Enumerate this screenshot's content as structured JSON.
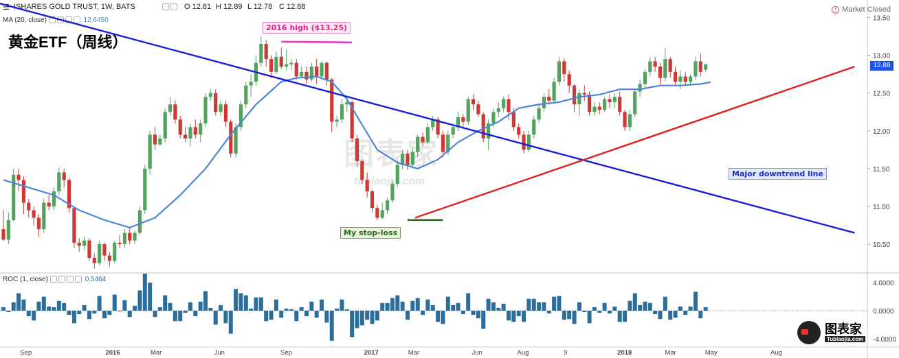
{
  "header": {
    "symbol": "ISHARES GOLD TRUST, 1W, BATS",
    "open": "O 12.81",
    "high": "H 12.89",
    "low": "L 12.78",
    "close": "C 12.88",
    "market_status": "Market Closed"
  },
  "ma": {
    "label": "MA (20, close)",
    "value": "12.6450",
    "color": "#4a86d9"
  },
  "roc": {
    "label": "ROC (1, close)",
    "value": "0.5464",
    "color": "#2d6d9a"
  },
  "title_cn": "黄金ETF（周线）",
  "last_price_tag": "12.88",
  "annotations": {
    "high": "2016 high ($13.25)",
    "stop": "My stop-loss",
    "trend": "Major downtrend line"
  },
  "watermark": {
    "cn": "图表家",
    "en": "tubiaojia.com"
  },
  "logo": {
    "cn": "图表家",
    "en": "Tubiaojia.com"
  },
  "colors": {
    "up": "#53a35f",
    "down": "#cd3a36",
    "downtrend": "#1c1fd0",
    "uptrend": "#e02020",
    "stop": "#2f6e22",
    "high": "#e23cc9"
  },
  "chart_data": {
    "type": "candlestick",
    "title": "",
    "price_axis": {
      "ylim": [
        10.12,
        13.55
      ],
      "ticks": [
        "13.50",
        "13.00",
        "12.50",
        "12.00",
        "11.50",
        "11.00",
        "10.50"
      ]
    },
    "time_axis": {
      "labels": [
        "Sep",
        "2016",
        "Mar",
        "Jun",
        "Sep",
        "2017",
        "Mar",
        "Jun",
        "Aug",
        "9",
        "2018",
        "Mar",
        "May",
        "Aug"
      ]
    },
    "candles": [
      [
        10.7,
        10.56,
        10.95,
        10.55
      ],
      [
        10.56,
        10.82,
        10.92,
        10.5
      ],
      [
        10.82,
        11.42,
        11.5,
        10.8
      ],
      [
        11.42,
        11.35,
        11.5,
        11.2
      ],
      [
        11.35,
        11.05,
        11.4,
        10.9
      ],
      [
        11.05,
        10.95,
        11.1,
        10.85
      ],
      [
        10.95,
        10.85,
        11,
        10.75
      ],
      [
        10.85,
        10.7,
        10.9,
        10.6
      ],
      [
        10.7,
        11.05,
        11.1,
        10.65
      ],
      [
        11.05,
        11.0,
        11.15,
        10.95
      ],
      [
        11.0,
        11.2,
        11.25,
        10.95
      ],
      [
        11.2,
        11.45,
        11.52,
        11.15
      ],
      [
        11.45,
        11.35,
        11.5,
        11.25
      ],
      [
        11.35,
        10.98,
        11.38,
        10.92
      ],
      [
        10.98,
        10.52,
        11.0,
        10.45
      ],
      [
        10.52,
        10.48,
        10.58,
        10.4
      ],
      [
        10.48,
        10.55,
        10.6,
        10.42
      ],
      [
        10.55,
        10.32,
        10.58,
        10.28
      ],
      [
        10.32,
        10.25,
        10.38,
        10.18
      ],
      [
        10.25,
        10.5,
        10.55,
        10.22
      ],
      [
        10.5,
        10.35,
        10.52,
        10.28
      ],
      [
        10.35,
        10.28,
        10.4,
        10.2
      ],
      [
        10.28,
        10.52,
        10.55,
        10.25
      ],
      [
        10.52,
        10.5,
        10.62,
        10.45
      ],
      [
        10.5,
        10.65,
        10.7,
        10.45
      ],
      [
        10.65,
        10.55,
        10.72,
        10.5
      ],
      [
        10.55,
        10.65,
        10.68,
        10.5
      ],
      [
        10.65,
        10.95,
        11.0,
        10.62
      ],
      [
        10.95,
        11.5,
        11.55,
        10.9
      ],
      [
        11.5,
        11.95,
        12.0,
        11.42
      ],
      [
        11.95,
        11.82,
        12.05,
        11.75
      ],
      [
        11.82,
        11.9,
        11.95,
        11.8
      ],
      [
        11.9,
        12.25,
        12.3,
        11.85
      ],
      [
        12.25,
        12.35,
        12.45,
        12.2
      ],
      [
        12.35,
        12.15,
        12.4,
        12.1
      ],
      [
        12.15,
        11.95,
        12.2,
        11.9
      ],
      [
        11.95,
        11.9,
        12.05,
        11.85
      ],
      [
        11.9,
        12.05,
        12.1,
        11.8
      ],
      [
        12.05,
        11.95,
        12.15,
        11.9
      ],
      [
        11.95,
        12.1,
        12.15,
        11.85
      ],
      [
        12.1,
        12.45,
        12.5,
        12.05
      ],
      [
        12.45,
        12.5,
        12.55,
        12.4
      ],
      [
        12.5,
        12.25,
        12.55,
        12.2
      ],
      [
        12.25,
        12.35,
        12.4,
        12.2
      ],
      [
        12.35,
        12.12,
        12.4,
        12.05
      ],
      [
        12.12,
        11.7,
        12.15,
        11.65
      ],
      [
        11.7,
        12.05,
        12.1,
        11.65
      ],
      [
        12.05,
        12.35,
        12.4,
        12.0
      ],
      [
        12.35,
        12.6,
        12.65,
        12.3
      ],
      [
        12.6,
        12.65,
        12.75,
        12.45
      ],
      [
        12.65,
        12.9,
        13.0,
        12.6
      ],
      [
        12.9,
        13.15,
        13.25,
        12.85
      ],
      [
        13.15,
        12.95,
        13.2,
        12.85
      ],
      [
        12.95,
        12.78,
        13.0,
        12.7
      ],
      [
        12.78,
        12.98,
        13.05,
        12.75
      ],
      [
        12.98,
        12.85,
        13.1,
        12.82
      ],
      [
        12.85,
        12.88,
        13.08,
        12.8
      ],
      [
        12.88,
        12.9,
        12.95,
        12.8
      ],
      [
        12.9,
        12.72,
        12.95,
        12.68
      ],
      [
        12.72,
        12.78,
        12.85,
        12.7
      ],
      [
        12.78,
        12.68,
        12.85,
        12.62
      ],
      [
        12.68,
        12.85,
        12.9,
        12.65
      ],
      [
        12.85,
        12.72,
        12.95,
        12.62
      ],
      [
        12.72,
        12.9,
        12.92,
        12.68
      ],
      [
        12.9,
        12.68,
        12.92,
        12.6
      ],
      [
        12.68,
        12.12,
        12.7,
        11.98
      ],
      [
        12.12,
        12.15,
        12.2,
        12.05
      ],
      [
        12.15,
        12.35,
        12.42,
        12.1
      ],
      [
        12.35,
        12.38,
        12.45,
        12.25
      ],
      [
        12.38,
        11.9,
        12.4,
        11.85
      ],
      [
        11.9,
        11.6,
        11.95,
        11.52
      ],
      [
        11.6,
        11.35,
        11.62,
        11.3
      ],
      [
        11.35,
        11.2,
        11.45,
        11.12
      ],
      [
        11.2,
        10.98,
        11.22,
        10.92
      ],
      [
        10.98,
        10.85,
        11.02,
        10.82
      ],
      [
        10.85,
        10.95,
        11.05,
        10.83
      ],
      [
        10.95,
        11.08,
        11.12,
        10.9
      ],
      [
        11.08,
        11.3,
        11.35,
        11.05
      ],
      [
        11.3,
        11.55,
        11.6,
        11.25
      ],
      [
        11.55,
        11.7,
        11.75,
        11.5
      ],
      [
        11.7,
        11.55,
        11.75,
        11.48
      ],
      [
        11.55,
        11.72,
        11.78,
        11.5
      ],
      [
        11.72,
        11.92,
        11.95,
        11.65
      ],
      [
        11.92,
        11.85,
        11.98,
        11.8
      ],
      [
        11.85,
        12.05,
        12.1,
        11.82
      ],
      [
        12.05,
        12.15,
        12.2,
        12.0
      ],
      [
        12.15,
        11.95,
        12.18,
        11.9
      ],
      [
        11.95,
        11.72,
        12.0,
        11.65
      ],
      [
        11.72,
        11.95,
        12.0,
        11.68
      ],
      [
        11.95,
        12.05,
        12.1,
        11.9
      ],
      [
        12.05,
        12.18,
        12.25,
        12.0
      ],
      [
        12.18,
        12.12,
        12.22,
        12.05
      ],
      [
        12.12,
        12.42,
        12.45,
        12.08
      ],
      [
        12.42,
        12.35,
        12.48,
        12.28
      ],
      [
        12.35,
        12.22,
        12.4,
        12.18
      ],
      [
        12.22,
        11.9,
        12.25,
        11.85
      ],
      [
        11.9,
        12.1,
        12.15,
        11.75
      ],
      [
        12.1,
        12.25,
        12.3,
        12.05
      ],
      [
        12.25,
        12.3,
        12.38,
        12.18
      ],
      [
        12.3,
        12.42,
        12.45,
        12.25
      ],
      [
        12.42,
        12.25,
        12.48,
        12.15
      ],
      [
        12.25,
        12.05,
        12.3,
        12.0
      ],
      [
        12.05,
        11.95,
        12.1,
        11.9
      ],
      [
        11.95,
        11.75,
        12.0,
        11.7
      ],
      [
        11.75,
        11.95,
        12.0,
        11.72
      ],
      [
        11.95,
        12.15,
        12.2,
        11.9
      ],
      [
        12.15,
        12.3,
        12.35,
        12.1
      ],
      [
        12.3,
        12.45,
        12.5,
        12.25
      ],
      [
        12.45,
        12.4,
        12.55,
        12.35
      ],
      [
        12.4,
        12.65,
        12.7,
        12.35
      ],
      [
        12.65,
        12.92,
        12.98,
        12.6
      ],
      [
        12.92,
        12.75,
        12.96,
        12.65
      ],
      [
        12.75,
        12.6,
        12.8,
        12.5
      ],
      [
        12.6,
        12.35,
        12.62,
        12.25
      ],
      [
        12.35,
        12.5,
        12.55,
        12.2
      ],
      [
        12.5,
        12.48,
        12.6,
        12.4
      ],
      [
        12.48,
        12.25,
        12.52,
        12.2
      ],
      [
        12.25,
        12.32,
        12.38,
        12.2
      ],
      [
        12.32,
        12.28,
        12.38,
        12.22
      ],
      [
        12.28,
        12.42,
        12.45,
        12.25
      ],
      [
        12.42,
        12.38,
        12.48,
        12.3
      ],
      [
        12.38,
        12.45,
        12.5,
        12.3
      ],
      [
        12.45,
        12.25,
        12.52,
        12.2
      ],
      [
        12.25,
        12.05,
        12.28,
        12.0
      ],
      [
        12.05,
        12.22,
        12.28,
        12.0
      ],
      [
        12.22,
        12.52,
        12.56,
        12.18
      ],
      [
        12.52,
        12.62,
        12.68,
        12.45
      ],
      [
        12.62,
        12.78,
        12.82,
        12.55
      ],
      [
        12.78,
        12.92,
        12.98,
        12.72
      ],
      [
        12.92,
        12.85,
        12.98,
        12.78
      ],
      [
        12.85,
        12.7,
        12.9,
        12.6
      ],
      [
        12.7,
        12.95,
        13.1,
        12.65
      ],
      [
        12.95,
        12.78,
        12.98,
        12.7
      ],
      [
        12.78,
        12.65,
        12.85,
        12.6
      ],
      [
        12.65,
        12.72,
        12.8,
        12.55
      ],
      [
        12.72,
        12.65,
        12.78,
        12.6
      ],
      [
        12.65,
        12.72,
        12.75,
        12.6
      ],
      [
        12.72,
        12.92,
        12.98,
        12.68
      ],
      [
        12.92,
        12.78,
        13.02,
        12.72
      ],
      [
        12.81,
        12.88,
        12.89,
        12.78
      ]
    ],
    "ma20": [
      [
        0,
        11.35
      ],
      [
        5,
        11.25
      ],
      [
        10,
        11.15
      ],
      [
        15,
        10.95
      ],
      [
        20,
        10.82
      ],
      [
        25,
        10.72
      ],
      [
        30,
        10.85
      ],
      [
        35,
        11.15
      ],
      [
        40,
        11.5
      ],
      [
        45,
        11.95
      ],
      [
        50,
        12.35
      ],
      [
        55,
        12.65
      ],
      [
        58,
        12.7
      ],
      [
        62,
        12.72
      ],
      [
        65,
        12.65
      ],
      [
        68,
        12.42
      ],
      [
        71,
        12.08
      ],
      [
        74,
        11.75
      ],
      [
        78,
        11.58
      ],
      [
        82,
        11.5
      ],
      [
        86,
        11.62
      ],
      [
        90,
        11.85
      ],
      [
        94,
        12.0
      ],
      [
        98,
        12.12
      ],
      [
        102,
        12.3
      ],
      [
        106,
        12.35
      ],
      [
        110,
        12.38
      ],
      [
        114,
        12.45
      ],
      [
        118,
        12.48
      ],
      [
        122,
        12.55
      ],
      [
        126,
        12.55
      ],
      [
        130,
        12.6
      ],
      [
        134,
        12.6
      ],
      [
        138,
        12.62
      ],
      [
        140,
        12.645
      ]
    ],
    "downtrend_line": {
      "from": [
        -1.5,
        13.7
      ],
      "to": [
        168.5,
        10.65
      ]
    },
    "uptrend_line": {
      "from": [
        81.5,
        10.85
      ],
      "to": [
        168.5,
        12.85
      ]
    },
    "high_line": {
      "from": [
        55,
        13.18
      ],
      "to": [
        69,
        13.17
      ],
      "value": 13.25
    },
    "stop_line": {
      "from": [
        80,
        10.82
      ],
      "to": [
        87,
        10.82
      ]
    },
    "roc_panel": {
      "ylim": [
        -5.2,
        5.2
      ],
      "ticks": [
        "4.0000",
        "0.0000",
        "-4.0000"
      ],
      "values": [
        0.5,
        -0.2,
        1.2,
        2.5,
        1.6,
        -0.8,
        -1.4,
        1.3,
        2.0,
        0.6,
        0.5,
        1.4,
        1.1,
        -0.6,
        -1.8,
        -0.5,
        0.8,
        -1.2,
        -0.4,
        2.1,
        -1.1,
        -0.6,
        2.3,
        -0.1,
        1.5,
        -0.9,
        0.7,
        2.9,
        5.3,
        4.0,
        -0.9,
        0.5,
        2.2,
        1.1,
        -1.5,
        -1.5,
        -0.3,
        1.2,
        -0.8,
        1.3,
        2.8,
        0.4,
        -2.0,
        0.8,
        -1.8,
        -3.3,
        3.1,
        2.5,
        2.2,
        0.3,
        1.9,
        1.9,
        -1.5,
        -1.3,
        1.6,
        -1.0,
        0.3,
        0.2,
        -1.5,
        0.5,
        -0.8,
        1.3,
        -1.0,
        1.6,
        -1.7,
        -4.3,
        0.3,
        1.6,
        0.2,
        -3.8,
        -2.5,
        -2.1,
        -1.3,
        -1.9,
        -1.4,
        1.1,
        1.1,
        1.8,
        2.2,
        1.3,
        -1.3,
        1.4,
        1.8,
        -0.6,
        1.6,
        0.8,
        -1.6,
        -1.9,
        2.0,
        0.8,
        1.1,
        -0.5,
        2.5,
        -0.6,
        -1.1,
        -2.6,
        1.7,
        1.2,
        0.4,
        1.0,
        -1.4,
        -1.6,
        -0.8,
        -1.6,
        1.7,
        1.7,
        1.2,
        1.2,
        -0.4,
        2.0,
        2.1,
        -1.3,
        -1.2,
        -1.9,
        1.2,
        -0.2,
        -1.8,
        0.5,
        -0.3,
        1.1,
        -0.4,
        0.6,
        -1.6,
        -1.6,
        1.4,
        2.5,
        0.8,
        1.3,
        1.1,
        -0.5,
        -1.2,
        2.0,
        -1.3,
        -1.0,
        0.6,
        -0.6,
        0.6,
        2.7,
        -1.1,
        0.5
      ]
    }
  }
}
